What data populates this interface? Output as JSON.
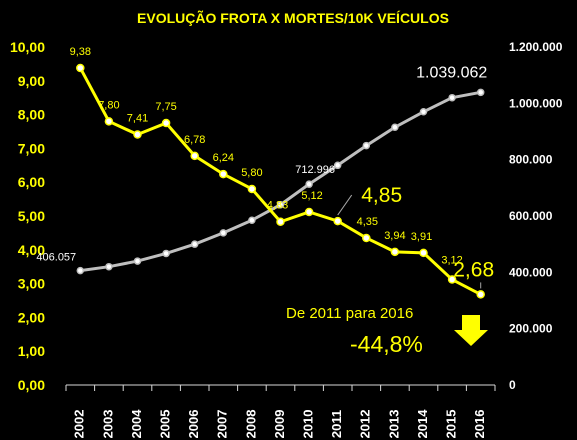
{
  "chart_data": {
    "type": "line",
    "title": "EVOLUÇÃO FROTA X MORTES/10K VEÍCULOS",
    "categories": [
      "2002",
      "2003",
      "2004",
      "2005",
      "2006",
      "2007",
      "2008",
      "2009",
      "2010",
      "2011",
      "2012",
      "2013",
      "2014",
      "2015",
      "2016"
    ],
    "series": [
      {
        "axis": "left",
        "color": "#ffff00",
        "values": [
          9.38,
          7.8,
          7.41,
          7.75,
          6.78,
          6.24,
          5.8,
          4.83,
          5.12,
          4.85,
          4.35,
          3.94,
          3.91,
          3.12,
          2.68
        ],
        "labels": [
          "9,38",
          "7,80",
          "7,41",
          "7,75",
          "6,78",
          "6,24",
          "5,80",
          "4,83",
          "5,12",
          "4,85",
          "4,35",
          "3,94",
          "3,91",
          "3,12",
          "2,68"
        ]
      },
      {
        "axis": "right",
        "color": "#bfbfbf",
        "values": [
          406057,
          420000,
          440000,
          467000,
          500000,
          540000,
          585000,
          640000,
          712996,
          780000,
          850000,
          915000,
          970000,
          1020000,
          1039062
        ],
        "labels": [
          "406.057",
          "",
          "",
          "",
          "",
          "",
          "",
          "",
          "712.996",
          "",
          "",
          "",
          "",
          "",
          "1.039.062"
        ]
      }
    ],
    "ylim_left": [
      0,
      10
    ],
    "yticks_left": [
      "0,00",
      "1,00",
      "2,00",
      "3,00",
      "4,00",
      "5,00",
      "6,00",
      "7,00",
      "8,00",
      "9,00",
      "10,00"
    ],
    "ylim_right": [
      0,
      1200000
    ],
    "yticks_right": [
      "0",
      "200.000",
      "400.000",
      "600.000",
      "800.000",
      "1.000.000",
      "1.200.000"
    ],
    "annotations": [
      "De 2011 para 2016",
      "-44,8%"
    ],
    "arrow_color": "#ffff00",
    "grid": false
  }
}
